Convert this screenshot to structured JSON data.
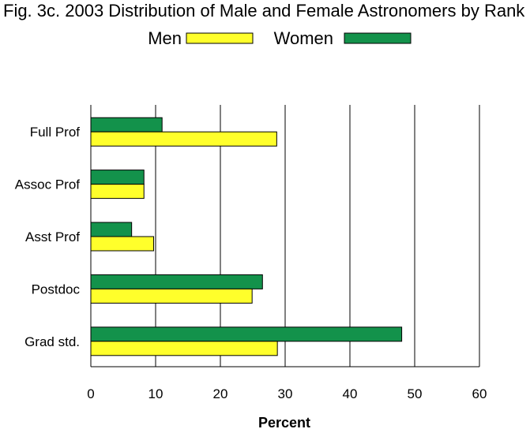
{
  "chart_data": {
    "type": "bar",
    "orientation": "horizontal",
    "title": "Fig. 3c. 2003 Distribution of Male and Female Astronomers by Rank",
    "xlabel": "Percent",
    "ylabel": "",
    "xlim": [
      0,
      60
    ],
    "xticks": [
      "0",
      "10",
      "20",
      "30",
      "40",
      "50",
      "60"
    ],
    "grid": "vertical",
    "legend": "top-center",
    "categories": [
      "Full Prof",
      "Assoc Prof",
      "Asst Prof",
      "Postdoc",
      "Grad std."
    ],
    "series": [
      {
        "name": "Women",
        "color": "#13924b",
        "values": [
          11,
          8.2,
          6.3,
          26.5,
          48
        ]
      },
      {
        "name": "Men",
        "color": "#ffff2b",
        "values": [
          28.7,
          8.2,
          9.7,
          24.9,
          28.8
        ]
      }
    ]
  }
}
